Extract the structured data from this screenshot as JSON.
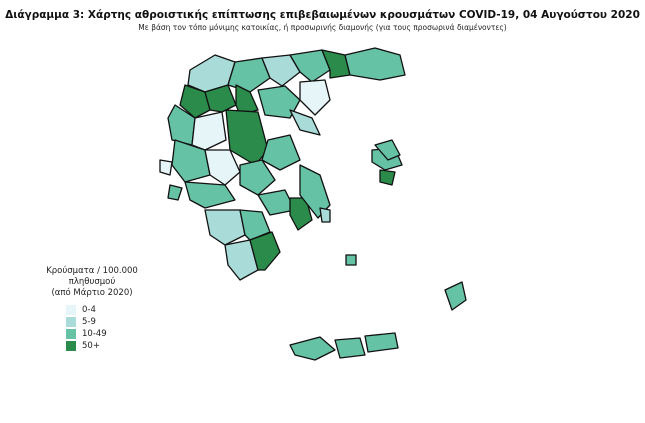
{
  "title": "Διάγραμμα 3: Χάρτης αθροιστικής επίπτωσης επιβεβαιωμένων κρουσμάτων COVID-19, 04 Αυγούστου 2020",
  "subtitle": "Με βάση τον τόπο μόνιμης κατοικίας, ή προσωρινής διαμονής (για τους προσωρινά διαμένοντες)",
  "legend": {
    "title_line1": "Κρούσματα / 100.000 πληθυσμού",
    "title_line2": "(από Μάρτιο 2020)",
    "classes": [
      {
        "label": "0-4",
        "color": "#e6f5f7"
      },
      {
        "label": "5-9",
        "color": "#a9dcd8"
      },
      {
        "label": "10-49",
        "color": "#66c2a4"
      },
      {
        "label": "50+",
        "color": "#2a8b4a"
      }
    ]
  },
  "regions": [
    {
      "c": 1,
      "p": "190,70 215,55 235,62 228,85 205,92 188,85"
    },
    {
      "c": 2,
      "p": "235,62 262,58 270,78 250,92 228,85"
    },
    {
      "c": 1,
      "p": "262,58 290,55 300,72 282,86 270,78"
    },
    {
      "c": 2,
      "p": "290,55 322,50 330,70 312,82 300,72"
    },
    {
      "c": 3,
      "p": "322,50 345,55 350,75 330,78 330,70"
    },
    {
      "c": 2,
      "p": "345,55 375,48 400,55 405,75 380,80 350,75"
    },
    {
      "c": 3,
      "p": "185,85 205,92 210,110 195,118 180,105"
    },
    {
      "c": 3,
      "p": "205,92 228,85 236,105 222,112 210,110"
    },
    {
      "c": 3,
      "p": "236,85 250,92 258,110 240,115 236,105"
    },
    {
      "c": 2,
      "p": "258,90 285,86 300,100 290,118 265,115"
    },
    {
      "c": 0,
      "p": "300,82 325,80 330,100 315,115 300,100"
    },
    {
      "c": 2,
      "p": "175,105 195,118 192,145 172,140 168,118"
    },
    {
      "c": 0,
      "p": "195,118 222,112 226,140 205,150 192,145"
    },
    {
      "c": 3,
      "p": "226,110 258,112 268,150 255,165 230,150"
    },
    {
      "c": 2,
      "p": "268,140 290,135 300,160 280,170 262,160"
    },
    {
      "c": 2,
      "p": "175,140 205,150 210,175 185,182 172,165"
    },
    {
      "c": 0,
      "p": "205,150 230,150 240,172 225,185 210,175"
    },
    {
      "c": 2,
      "p": "240,165 262,160 275,180 258,195 240,185"
    },
    {
      "c": 2,
      "p": "185,182 225,185 235,200 205,208 190,200"
    },
    {
      "c": 2,
      "p": "258,195 285,190 295,210 270,215"
    },
    {
      "c": 3,
      "p": "290,198 306,198 312,220 298,230 290,215"
    },
    {
      "c": 1,
      "p": "205,210 240,210 245,235 225,245 210,235"
    },
    {
      "c": 2,
      "p": "240,210 262,212 270,232 250,240 245,235"
    },
    {
      "c": 1,
      "p": "225,245 250,240 258,270 240,280 228,265"
    },
    {
      "c": 3,
      "p": "250,240 272,232 280,252 265,270 258,270"
    },
    {
      "c": 2,
      "p": "300,165 320,175 330,205 318,218 300,195"
    },
    {
      "c": 2,
      "p": "290,345 320,337 335,350 315,360 295,355"
    },
    {
      "c": 2,
      "p": "335,340 360,338 365,355 340,358"
    },
    {
      "c": 2,
      "p": "365,336 395,333 398,348 368,352"
    },
    {
      "c": 2,
      "p": "372,150 395,148 402,165 385,170 372,162"
    },
    {
      "c": 3,
      "p": "380,170 395,172 392,185 380,182"
    },
    {
      "c": 2,
      "p": "445,290 462,282 466,300 452,310"
    },
    {
      "c": 1,
      "p": "320,208 330,210 330,222 322,222"
    },
    {
      "c": 2,
      "p": "346,255 356,255 356,265 346,265"
    },
    {
      "c": 0,
      "p": "160,160 172,162 170,175 160,172"
    },
    {
      "c": 2,
      "p": "170,185 182,188 178,200 168,198"
    },
    {
      "c": 1,
      "p": "290,110 312,118 320,135 300,130"
    },
    {
      "c": 2,
      "p": "375,145 392,140 400,155 388,160"
    }
  ]
}
